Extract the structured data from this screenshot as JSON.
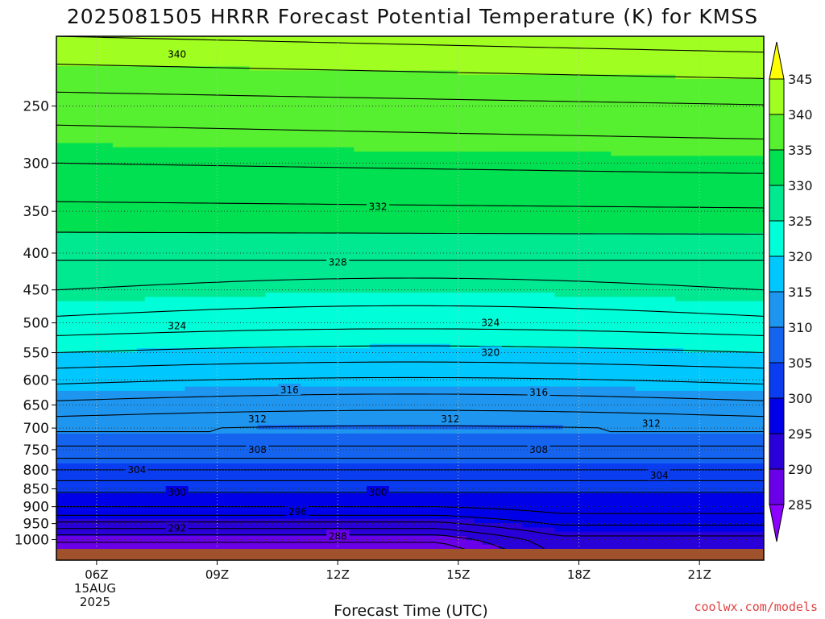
{
  "title": "2025081505 HRRR Forecast Potential Temperature (K) for KMSS",
  "xlabel": "Forecast Time (UTC)",
  "credit": "coolwx.com/models",
  "date_label": {
    "day": "15AUG",
    "year": "2025"
  },
  "colors": {
    "ground": "#a0522d",
    "bins": [
      "#8b00ff",
      "#6a00e8",
      "#2a00d8",
      "#0000e8",
      "#0a3cf0",
      "#1464f0",
      "#1e96f0",
      "#00c8ff",
      "#00ffd8",
      "#00e890",
      "#00e050",
      "#56f030",
      "#a0ff20",
      "#ffff00"
    ]
  },
  "chart_data": {
    "type": "contour",
    "title": "2025081505 HRRR Forecast Potential Temperature (K) for KMSS",
    "xlabel": "Forecast Time (UTC)",
    "ylabel": "",
    "x_ticks": [
      "06Z",
      "09Z",
      "12Z",
      "15Z",
      "18Z",
      "21Z"
    ],
    "x_tick_hours": [
      6,
      9,
      12,
      15,
      18,
      21
    ],
    "xlim_hours": [
      5,
      22.6
    ],
    "y_scale": "log-pressure (hPa), inverted",
    "y_ticks": [
      250,
      300,
      350,
      400,
      450,
      500,
      550,
      600,
      650,
      700,
      750,
      800,
      850,
      900,
      950,
      1000
    ],
    "ylim_hPa": [
      1030,
      200
    ],
    "grid": "dotted",
    "colorbar_levels": [
      285,
      290,
      295,
      300,
      305,
      310,
      315,
      320,
      325,
      330,
      335,
      340,
      345
    ],
    "colorbar_ticks": [
      "285",
      "290",
      "295",
      "300",
      "305",
      "310",
      "315",
      "320",
      "325",
      "330",
      "335",
      "340",
      "345"
    ],
    "contour_interval_K": 2,
    "contour_labels": [
      {
        "text": "340",
        "hour": 8,
        "p": 212
      },
      {
        "text": "332",
        "hour": 13,
        "p": 345
      },
      {
        "text": "328",
        "hour": 12,
        "p": 412
      },
      {
        "text": "324",
        "hour": 8,
        "p": 505
      },
      {
        "text": "324",
        "hour": 15.8,
        "p": 500
      },
      {
        "text": "320",
        "hour": 15.8,
        "p": 550
      },
      {
        "text": "316",
        "hour": 10.8,
        "p": 620
      },
      {
        "text": "316",
        "hour": 17,
        "p": 625
      },
      {
        "text": "312",
        "hour": 10,
        "p": 680
      },
      {
        "text": "312",
        "hour": 14.8,
        "p": 680
      },
      {
        "text": "312",
        "hour": 19.8,
        "p": 690
      },
      {
        "text": "308",
        "hour": 10,
        "p": 750
      },
      {
        "text": "308",
        "hour": 17,
        "p": 750
      },
      {
        "text": "304",
        "hour": 7,
        "p": 800
      },
      {
        "text": "304",
        "hour": 20,
        "p": 815
      },
      {
        "text": "300",
        "hour": 8,
        "p": 860
      },
      {
        "text": "300",
        "hour": 13,
        "p": 860
      },
      {
        "text": "296",
        "hour": 11,
        "p": 915
      },
      {
        "text": "292",
        "hour": 8,
        "p": 965
      },
      {
        "text": "288",
        "hour": 12,
        "p": 990
      }
    ],
    "sounding_profile": [
      {
        "p": 1000,
        "theta": 288.5
      },
      {
        "p": 975,
        "theta": 291
      },
      {
        "p": 950,
        "theta": 293.5
      },
      {
        "p": 925,
        "theta": 296
      },
      {
        "p": 900,
        "theta": 298
      },
      {
        "p": 850,
        "theta": 300.5
      },
      {
        "p": 800,
        "theta": 304
      },
      {
        "p": 750,
        "theta": 307.5
      },
      {
        "p": 700,
        "theta": 310.5
      },
      {
        "p": 650,
        "theta": 313.5
      },
      {
        "p": 600,
        "theta": 316.5
      },
      {
        "p": 550,
        "theta": 320
      },
      {
        "p": 500,
        "theta": 323.5
      },
      {
        "p": 450,
        "theta": 326
      },
      {
        "p": 400,
        "theta": 328.5
      },
      {
        "p": 350,
        "theta": 331.5
      },
      {
        "p": 300,
        "theta": 334
      },
      {
        "p": 250,
        "theta": 337
      },
      {
        "p": 200,
        "theta": 342
      }
    ]
  }
}
